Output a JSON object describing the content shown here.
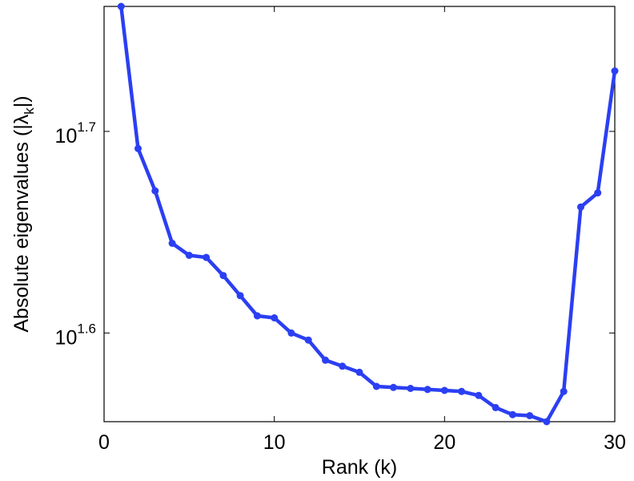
{
  "chart_data": {
    "type": "line",
    "title": "",
    "xlabel": "Rank (k)",
    "ylabel": "Absolute eigenvalues (|λk|)",
    "ylabel_parts": {
      "before": "Absolute eigenvalues (|λ",
      "sub": "k",
      "after": "|)"
    },
    "xlim": [
      0,
      30
    ],
    "yscale": "log10",
    "ylim_log10": [
      1.556,
      1.762
    ],
    "grid": false,
    "legend": "none",
    "xticks": [
      {
        "value": 0,
        "label": "0"
      },
      {
        "value": 10,
        "label": "10"
      },
      {
        "value": 20,
        "label": "20"
      },
      {
        "value": 30,
        "label": "30"
      }
    ],
    "yticks": [
      {
        "log10": 1.6,
        "base": "10",
        "exp": "1.6"
      },
      {
        "log10": 1.7,
        "base": "10",
        "exp": "1.7"
      }
    ],
    "color": "#2b3ff2",
    "series": [
      {
        "x": [
          1,
          2,
          3,
          4,
          5,
          6,
          7,
          8,
          9,
          10,
          11,
          12,
          13,
          14,
          15,
          16,
          17,
          18,
          19,
          20,
          21,
          22,
          23,
          24,
          25,
          26,
          27,
          28,
          29,
          30
        ],
        "y_log10": [
          1.762,
          1.6915,
          1.6705,
          1.6445,
          1.6385,
          1.6375,
          1.6285,
          1.6185,
          1.6085,
          1.6075,
          1.6,
          1.5965,
          1.5865,
          1.5835,
          1.5805,
          1.5735,
          1.573,
          1.5725,
          1.572,
          1.5715,
          1.571,
          1.569,
          1.563,
          1.5595,
          1.559,
          1.556,
          1.571,
          1.6625,
          1.6695,
          1.73
        ]
      }
    ]
  }
}
